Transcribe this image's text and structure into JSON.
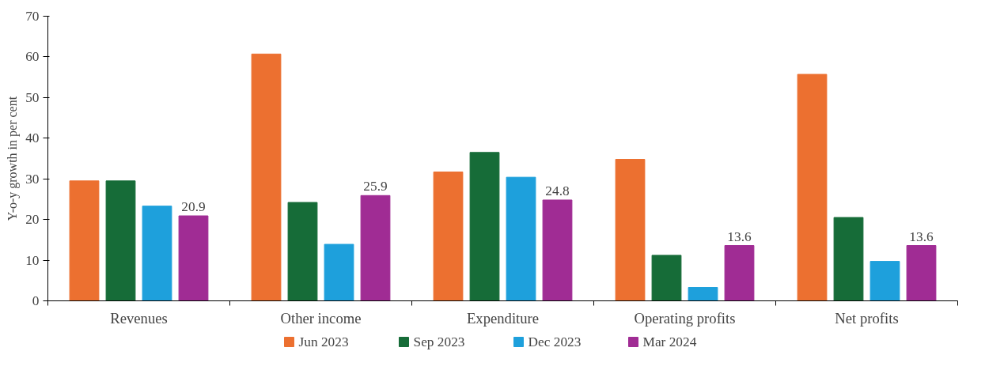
{
  "chart_data": {
    "type": "bar",
    "ylabel": "Y-o-y growth in per cent",
    "categories": [
      "Revenues",
      "Other income",
      "Expenditure",
      "Operating profits",
      "Net profits"
    ],
    "series": [
      {
        "name": "Jun 2023",
        "color": "#ec7030",
        "values": [
          29.5,
          60.7,
          31.7,
          34.8,
          55.7
        ]
      },
      {
        "name": "Sep 2023",
        "color": "#166c38",
        "values": [
          29.5,
          24.2,
          36.5,
          11.2,
          20.5
        ]
      },
      {
        "name": "Dec 2023",
        "color": "#1ea0dc",
        "values": [
          23.3,
          13.9,
          30.4,
          3.3,
          9.7
        ]
      },
      {
        "name": "Mar 2024",
        "color": "#a02c94",
        "values": [
          20.9,
          25.9,
          24.8,
          13.6,
          13.6
        ],
        "value_labels": [
          "20.9",
          "25.9",
          "24.8",
          "13.6",
          "13.6"
        ]
      }
    ],
    "ylim": [
      0,
      70
    ],
    "yticks": [
      0,
      10,
      20,
      30,
      40,
      50,
      60,
      70
    ],
    "grid": false,
    "legend": "bottom"
  }
}
